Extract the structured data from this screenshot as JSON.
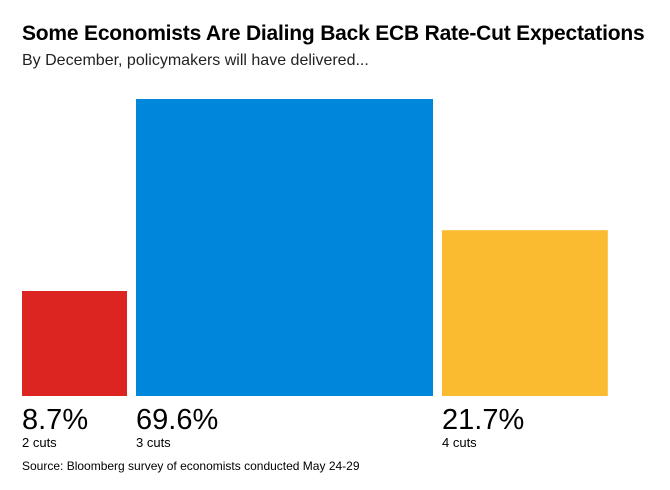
{
  "title": "Some Economists Are Dialing Back ECB Rate-Cut Expectations",
  "subtitle": "By December, policymakers will have delivered...",
  "source": "Source: Bloomberg survey of economists conducted May 24-29",
  "chart_data": {
    "type": "bar",
    "subtype": "variable-width area bars",
    "title": "Some Economists Are Dialing Back ECB Rate-Cut Expectations",
    "subtitle": "By December, policymakers will have delivered...",
    "categories": [
      "2 cuts",
      "3 cuts",
      "4 cuts"
    ],
    "values": [
      8.7,
      69.6,
      21.7
    ],
    "value_labels": [
      "8.7%",
      "69.6%",
      "21.7%"
    ],
    "unit": "%",
    "colors": [
      "#dc2520",
      "#0087dc",
      "#fbbb30"
    ],
    "xlabel": "",
    "ylabel": "",
    "grid": false,
    "legend": "none"
  }
}
